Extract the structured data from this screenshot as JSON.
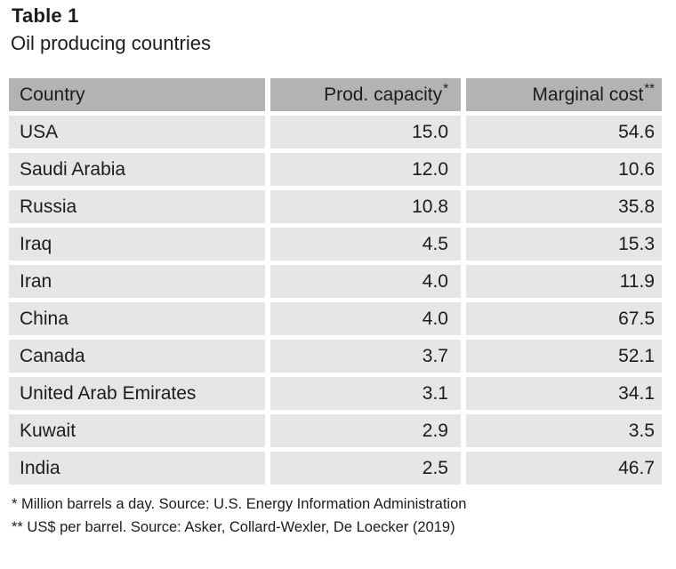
{
  "title": "Table 1",
  "subtitle": "Oil producing countries",
  "table": {
    "header_bg": "#b3b3b3",
    "row_bg": "#e6e6e6",
    "text_color": "#1c1c1c",
    "columns": [
      {
        "label": "Country",
        "marker": "",
        "align": "left"
      },
      {
        "label": "Prod. capacity",
        "marker": "*",
        "align": "right"
      },
      {
        "label": "Marginal cost",
        "marker": "**",
        "align": "right"
      }
    ],
    "rows": [
      {
        "country": "USA",
        "capacity": "15.0",
        "cost": "54.6"
      },
      {
        "country": "Saudi Arabia",
        "capacity": "12.0",
        "cost": "10.6"
      },
      {
        "country": "Russia",
        "capacity": "10.8",
        "cost": "35.8"
      },
      {
        "country": "Iraq",
        "capacity": "4.5",
        "cost": "15.3"
      },
      {
        "country": "Iran",
        "capacity": "4.0",
        "cost": "11.9"
      },
      {
        "country": "China",
        "capacity": "4.0",
        "cost": "67.5"
      },
      {
        "country": "Canada",
        "capacity": "3.7",
        "cost": "52.1"
      },
      {
        "country": "United Arab Emirates",
        "capacity": "3.1",
        "cost": "34.1"
      },
      {
        "country": "Kuwait",
        "capacity": "2.9",
        "cost": "3.5"
      },
      {
        "country": "India",
        "capacity": "2.5",
        "cost": "46.7"
      }
    ]
  },
  "footnotes": [
    "* Million barrels a day. Source: U.S. Energy Information Administration",
    "** US$ per barrel. Source: Asker, Collard-Wexler, De Loecker (2019)"
  ]
}
